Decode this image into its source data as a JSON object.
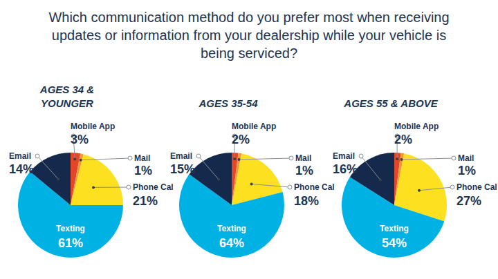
{
  "title": "Which communication method do you prefer most when receiving updates or information from your dealership while your vehicle is being serviced?",
  "chart_data": [
    {
      "type": "pie",
      "title": "AGES 34 & YOUNGER",
      "categories": [
        "Mobile App",
        "Mail",
        "Phone Calls",
        "Texting",
        "Email"
      ],
      "values": [
        3,
        1,
        21,
        61,
        14
      ],
      "value_labels": [
        "3%",
        "1%",
        "21%",
        "61%",
        "14%"
      ],
      "colors": [
        "#e2472a",
        "#f29a38",
        "#fde020",
        "#00b2e3",
        "#14294b"
      ],
      "data_labels": true
    },
    {
      "type": "pie",
      "title": "AGES 35-54",
      "categories": [
        "Mobile App",
        "Mail",
        "Phone Calls",
        "Texting",
        "Email"
      ],
      "values": [
        2,
        1,
        18,
        64,
        15
      ],
      "value_labels": [
        "2%",
        "1%",
        "18%",
        "64%",
        "15%"
      ],
      "colors": [
        "#e2472a",
        "#f29a38",
        "#fde020",
        "#00b2e3",
        "#14294b"
      ],
      "data_labels": true
    },
    {
      "type": "pie",
      "title": "AGES 55 & ABOVE",
      "categories": [
        "Mobile App",
        "Mail",
        "Phone Calls",
        "Texting",
        "Email"
      ],
      "values": [
        2,
        1,
        27,
        54,
        16
      ],
      "value_labels": [
        "2%",
        "1%",
        "27%",
        "54%",
        "16%"
      ],
      "colors": [
        "#e2472a",
        "#f29a38",
        "#fde020",
        "#00b2e3",
        "#14294b"
      ],
      "data_labels": true
    }
  ]
}
